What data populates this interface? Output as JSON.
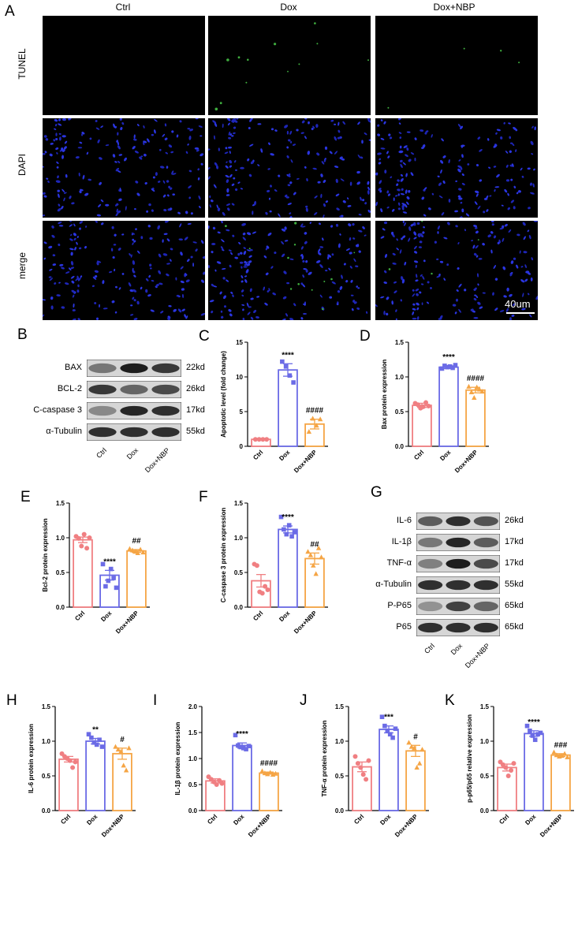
{
  "panel_A": {
    "label": "A",
    "columns": [
      "Ctrl",
      "Dox",
      "Dox+NBP"
    ],
    "rows": [
      "TUNEL",
      "DAPI",
      "merge"
    ],
    "scale_bar": "40um"
  },
  "panel_B": {
    "label": "B",
    "bands": [
      {
        "name": "BAX",
        "kd": "22kd"
      },
      {
        "name": "BCL-2",
        "kd": "26kd"
      },
      {
        "name": "C-caspase 3",
        "kd": "17kd"
      },
      {
        "name": "α-Tubulin",
        "kd": "55kd"
      }
    ],
    "lanes": [
      "Ctrl",
      "Dox",
      "Dox+NBP"
    ]
  },
  "panel_G": {
    "label": "G",
    "bands": [
      {
        "name": "IL-6",
        "kd": "26kd"
      },
      {
        "name": "IL-1β",
        "kd": "17kd"
      },
      {
        "name": "TNF-α",
        "kd": "17kd"
      },
      {
        "name": "α-Tubulin",
        "kd": "55kd"
      },
      {
        "name": "P-P65",
        "kd": "65kd"
      },
      {
        "name": "P65",
        "kd": "65kd"
      }
    ],
    "lanes": [
      "Ctrl",
      "Dox",
      "Dox+NBP"
    ]
  },
  "chart_data": [
    {
      "panel": "C",
      "type": "bar",
      "categories": [
        "Ctrl",
        "Dox",
        "Dox+NBP"
      ],
      "values": [
        1.0,
        11.0,
        3.2
      ],
      "errors": [
        0.05,
        0.9,
        0.7
      ],
      "points": [
        [
          1.0,
          1.0,
          1.0,
          1.0
        ],
        [
          12.2,
          11.5,
          10.2,
          9.2
        ],
        [
          2.1,
          4.0,
          3.0,
          3.9
        ]
      ],
      "annotations": [
        "",
        "****",
        "####"
      ],
      "ylabel": "Apoptotic level (fold change)",
      "ylim": [
        0,
        15
      ],
      "yticks": [
        0,
        5,
        10,
        15
      ]
    },
    {
      "panel": "D",
      "type": "bar",
      "categories": [
        "Ctrl",
        "Dox",
        "Dox+NBP"
      ],
      "values": [
        0.59,
        1.14,
        0.81
      ],
      "errors": [
        0.03,
        0.02,
        0.04
      ],
      "points": [
        [
          0.62,
          0.6,
          0.55,
          0.57,
          0.63,
          0.58
        ],
        [
          1.12,
          1.16,
          1.14,
          1.15,
          1.13,
          1.17
        ],
        [
          0.86,
          0.78,
          0.7,
          0.85,
          0.82,
          0.79
        ]
      ],
      "annotations": [
        "",
        "****",
        "####"
      ],
      "ylabel": "Bax protein expression",
      "ylim": [
        0,
        1.5
      ],
      "yticks": [
        0.0,
        0.5,
        1.0,
        1.5
      ]
    },
    {
      "panel": "E",
      "type": "bar",
      "categories": [
        "Ctrl",
        "Dox",
        "Dox+NBP"
      ],
      "values": [
        0.97,
        0.46,
        0.81
      ],
      "errors": [
        0.04,
        0.07,
        0.02
      ],
      "points": [
        [
          1.02,
          0.99,
          0.88,
          1.05,
          0.85,
          1.0
        ],
        [
          0.62,
          0.3,
          0.38,
          0.55,
          0.42,
          0.28
        ],
        [
          0.84,
          0.82,
          0.8,
          0.78,
          0.83,
          0.79
        ]
      ],
      "annotations": [
        "",
        "****",
        "##"
      ],
      "ylabel": "Bcl-2 protein expression",
      "ylim": [
        0,
        1.5
      ],
      "yticks": [
        0.0,
        0.5,
        1.0,
        1.5
      ]
    },
    {
      "panel": "F",
      "type": "bar",
      "categories": [
        "Ctrl",
        "Dox",
        "Dox+NBP"
      ],
      "values": [
        0.38,
        1.12,
        0.7
      ],
      "errors": [
        0.09,
        0.05,
        0.08
      ],
      "points": [
        [
          0.62,
          0.6,
          0.22,
          0.2,
          0.3,
          0.25
        ],
        [
          1.3,
          1.12,
          1.05,
          1.18,
          1.02,
          1.08
        ],
        [
          0.8,
          0.75,
          0.6,
          0.48,
          0.85,
          0.72
        ]
      ],
      "annotations": [
        "",
        "****",
        "##"
      ],
      "ylabel": "C-caspase 3 protein expression",
      "ylim": [
        0,
        1.5
      ],
      "yticks": [
        0.0,
        0.5,
        1.0,
        1.5
      ]
    },
    {
      "panel": "H",
      "type": "bar",
      "categories": [
        "Ctrl",
        "Dox",
        "Dox+NBP"
      ],
      "values": [
        0.74,
        1.0,
        0.82
      ],
      "errors": [
        0.04,
        0.04,
        0.08
      ],
      "points": [
        [
          0.82,
          0.78,
          0.75,
          0.72,
          0.62,
          0.7
        ],
        [
          1.1,
          1.05,
          0.98,
          0.95,
          1.02,
          0.92
        ],
        [
          0.92,
          0.88,
          0.85,
          0.65,
          0.58,
          0.9
        ]
      ],
      "annotations": [
        "",
        "**",
        "#"
      ],
      "ylabel": "IL-6 protein expression",
      "ylim": [
        0,
        1.5
      ],
      "yticks": [
        0.0,
        0.5,
        1.0,
        1.5
      ]
    },
    {
      "panel": "I",
      "type": "bar",
      "categories": [
        "Ctrl",
        "Dox",
        "Dox+NBP"
      ],
      "values": [
        0.57,
        1.25,
        0.72
      ],
      "errors": [
        0.04,
        0.05,
        0.02
      ],
      "points": [
        [
          0.65,
          0.6,
          0.55,
          0.5,
          0.58,
          0.52
        ],
        [
          1.45,
          1.25,
          1.22,
          1.2,
          1.18,
          1.24
        ],
        [
          0.76,
          0.72,
          0.7,
          0.73,
          0.69,
          0.71
        ]
      ],
      "annotations": [
        "",
        "****",
        "####"
      ],
      "ylabel": "IL-1β protein expression",
      "ylim": [
        0,
        2.0
      ],
      "yticks": [
        0.0,
        0.5,
        1.0,
        1.5,
        2.0
      ]
    },
    {
      "panel": "J",
      "type": "bar",
      "categories": [
        "Ctrl",
        "Dox",
        "Dox+NBP"
      ],
      "values": [
        0.63,
        1.17,
        0.86
      ],
      "errors": [
        0.07,
        0.05,
        0.08
      ],
      "points": [
        [
          0.78,
          0.68,
          0.62,
          0.52,
          0.45,
          0.72
        ],
        [
          1.35,
          1.22,
          1.15,
          1.1,
          1.05,
          1.18
        ],
        [
          0.98,
          0.92,
          0.9,
          0.62,
          0.68,
          0.88
        ]
      ],
      "annotations": [
        "",
        "***",
        "#"
      ],
      "ylabel": "TNF-α protein expression",
      "ylim": [
        0,
        1.5
      ],
      "yticks": [
        0.0,
        0.5,
        1.0,
        1.5
      ]
    },
    {
      "panel": "K",
      "type": "bar",
      "categories": [
        "Ctrl",
        "Dox",
        "Dox+NBP"
      ],
      "values": [
        0.62,
        1.11,
        0.8
      ],
      "errors": [
        0.05,
        0.04,
        0.02
      ],
      "points": [
        [
          0.7,
          0.66,
          0.62,
          0.5,
          0.58,
          0.68
        ],
        [
          1.22,
          1.15,
          1.08,
          1.02,
          1.1,
          1.12
        ],
        [
          0.84,
          0.8,
          0.78,
          0.79,
          0.82,
          0.77
        ]
      ],
      "annotations": [
        "",
        "****",
        "###"
      ],
      "ylabel": "p-p65/p65 relative expression",
      "ylim": [
        0,
        1.5
      ],
      "yticks": [
        0.0,
        0.5,
        1.0,
        1.5
      ]
    }
  ],
  "colors": {
    "ctrl": "#f07f82",
    "dox": "#6b6be6",
    "nbp": "#f5a545"
  }
}
